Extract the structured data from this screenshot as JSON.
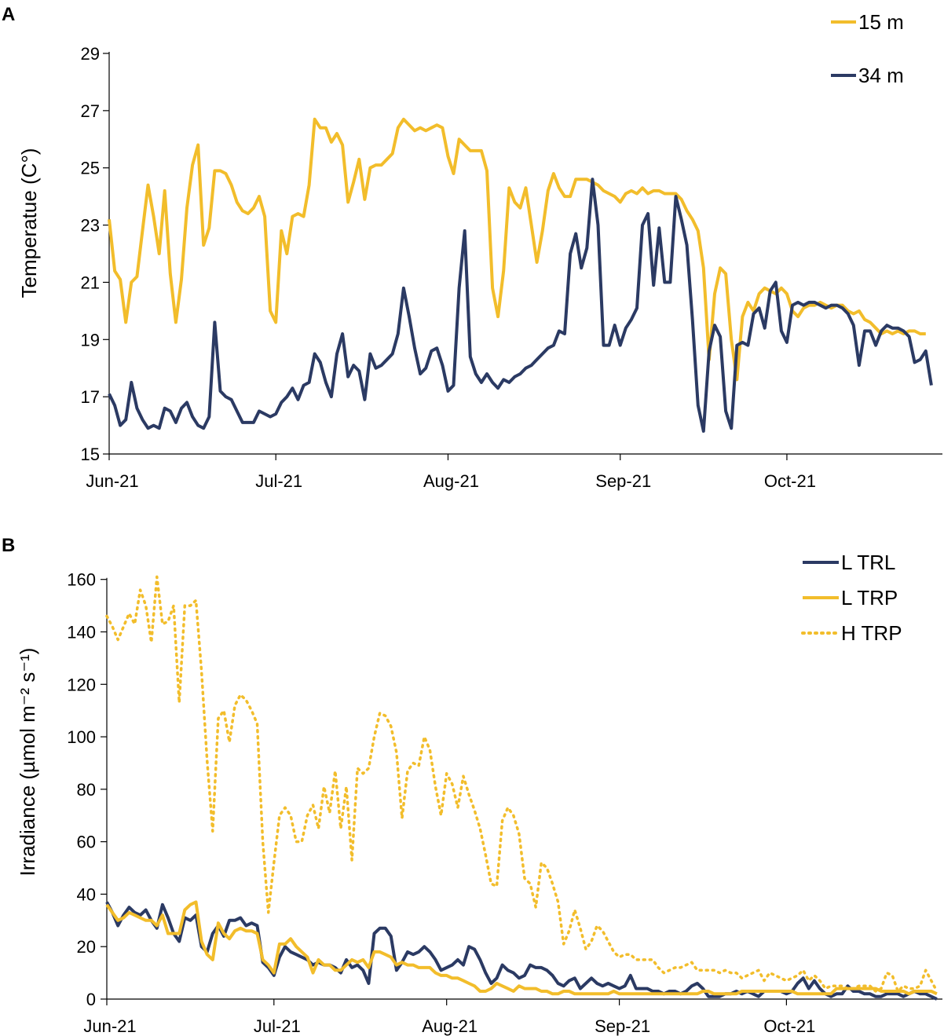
{
  "colors": {
    "yellow": "#F2BD2B",
    "navy": "#2B3A63"
  },
  "chart_data": [
    {
      "type": "line",
      "panel_label": "A",
      "ylabel": "Temperatue (C°)",
      "xlabel": "",
      "ylim": [
        15,
        29
      ],
      "yticks": [
        "15",
        "17",
        "19",
        "21",
        "23",
        "25",
        "27",
        "29"
      ],
      "xlim": [
        0,
        150
      ],
      "xticks": [
        {
          "label": "Jun-21",
          "day": 0
        },
        {
          "label": "Jul-21",
          "day": 30
        },
        {
          "label": "Aug-21",
          "day": 61
        },
        {
          "label": "Sep-21",
          "day": 92
        },
        {
          "label": "Oct-21",
          "day": 122
        }
      ],
      "legend_position": "top-right",
      "series": [
        {
          "name": "15 m",
          "color_key": "yellow",
          "style": "solid",
          "values": [
            23.2,
            21.4,
            21.1,
            19.6,
            21.0,
            21.2,
            22.8,
            24.4,
            23.3,
            22.0,
            24.2,
            21.3,
            19.6,
            21.1,
            23.6,
            25.1,
            25.8,
            22.3,
            22.9,
            24.9,
            24.9,
            24.8,
            24.4,
            23.8,
            23.5,
            23.4,
            23.6,
            24.0,
            23.3,
            20.0,
            19.6,
            22.8,
            22.0,
            23.3,
            23.4,
            23.3,
            24.4,
            26.7,
            26.4,
            26.4,
            25.9,
            26.2,
            25.8,
            23.8,
            24.5,
            25.3,
            23.9,
            25.0,
            25.1,
            25.1,
            25.3,
            25.5,
            26.4,
            26.7,
            26.5,
            26.3,
            26.4,
            26.3,
            26.4,
            26.5,
            26.4,
            25.4,
            24.8,
            26.0,
            25.8,
            25.6,
            25.6,
            25.6,
            24.9,
            20.8,
            19.8,
            21.4,
            24.3,
            23.8,
            23.6,
            24.3,
            23.0,
            21.7,
            22.8,
            24.2,
            24.8,
            24.3,
            24.0,
            24.0,
            24.6,
            24.6,
            24.6,
            24.5,
            24.4,
            24.2,
            24.1,
            24.0,
            23.8,
            24.1,
            24.2,
            24.1,
            24.3,
            24.1,
            24.2,
            24.2,
            24.1,
            24.1,
            24.1,
            23.9,
            23.5,
            23.2,
            22.8,
            21.5,
            18.3,
            20.6,
            21.5,
            21.3,
            19.0,
            17.6,
            19.8,
            20.3,
            20.0,
            20.6,
            20.8,
            20.7,
            20.6,
            20.8,
            20.6,
            20.0,
            19.8,
            20.1,
            20.2,
            20.2,
            20.3,
            20.2,
            20.1,
            20.2,
            20.2,
            20.0,
            19.9,
            20.0,
            19.7,
            19.6,
            19.4,
            19.2,
            19.3,
            19.2,
            19.3,
            19.2,
            19.3,
            19.3,
            19.2,
            19.2
          ]
        },
        {
          "name": "34 m",
          "color_key": "navy",
          "style": "solid",
          "values": [
            17.1,
            16.7,
            16.0,
            16.2,
            17.5,
            16.6,
            16.2,
            15.9,
            16.0,
            15.9,
            16.6,
            16.5,
            16.1,
            16.6,
            16.8,
            16.3,
            16.0,
            15.9,
            16.3,
            19.6,
            17.2,
            17.0,
            16.9,
            16.5,
            16.1,
            16.1,
            16.1,
            16.5,
            16.4,
            16.3,
            16.4,
            16.8,
            17.0,
            17.3,
            16.9,
            17.4,
            17.5,
            18.5,
            18.2,
            17.5,
            17.0,
            18.5,
            19.2,
            17.7,
            18.1,
            17.9,
            16.9,
            18.5,
            18.0,
            18.1,
            18.3,
            18.5,
            19.2,
            20.8,
            19.8,
            18.7,
            17.8,
            18.0,
            18.6,
            18.7,
            18.1,
            17.2,
            17.4,
            20.8,
            22.8,
            18.4,
            17.8,
            17.5,
            17.8,
            17.5,
            17.3,
            17.6,
            17.5,
            17.7,
            17.8,
            18.0,
            18.1,
            18.3,
            18.5,
            18.7,
            18.8,
            19.3,
            19.2,
            22.0,
            22.7,
            21.5,
            22.2,
            24.6,
            23.0,
            18.8,
            18.8,
            19.5,
            18.8,
            19.4,
            19.7,
            20.1,
            23.0,
            23.4,
            20.9,
            22.9,
            21.0,
            21.0,
            24.0,
            23.2,
            22.3,
            19.7,
            16.7,
            15.8,
            18.6,
            19.5,
            19.1,
            16.5,
            15.9,
            18.8,
            18.9,
            18.8,
            19.9,
            20.1,
            19.4,
            20.7,
            21.0,
            19.3,
            18.9,
            20.2,
            20.3,
            20.2,
            20.3,
            20.3,
            20.2,
            20.1,
            20.2,
            20.2,
            20.1,
            19.9,
            19.5,
            18.1,
            19.3,
            19.3,
            18.8,
            19.3,
            19.5,
            19.4,
            19.4,
            19.3,
            19.1,
            18.2,
            18.3,
            18.6,
            17.4
          ]
        }
      ]
    },
    {
      "type": "line",
      "panel_label": "B",
      "ylabel": "Irradiance (µmol m⁻² s⁻¹)",
      "xlabel": "",
      "ylim": [
        0,
        165
      ],
      "yticks": [
        "0",
        "20",
        "40",
        "60",
        "80",
        "100",
        "120",
        "140",
        "160"
      ],
      "xlim": [
        0,
        150
      ],
      "xticks": [
        {
          "label": "Jun-21",
          "day": 0
        },
        {
          "label": "Jul-21",
          "day": 30
        },
        {
          "label": "Aug-21",
          "day": 61
        },
        {
          "label": "Sep-21",
          "day": 92
        },
        {
          "label": "Oct-21",
          "day": 122
        }
      ],
      "legend_position": "top-right",
      "series": [
        {
          "name": "L TRL",
          "color_key": "navy",
          "style": "solid",
          "values": [
            37,
            33,
            28,
            32,
            35,
            33,
            32,
            34,
            30,
            27,
            36,
            31,
            25,
            22,
            31,
            30,
            32,
            20,
            18,
            25,
            28,
            24,
            30,
            30,
            31,
            28,
            29,
            28,
            14,
            12,
            9,
            16,
            20,
            18,
            17,
            16,
            15,
            13,
            14,
            13,
            13,
            12,
            10,
            15,
            12,
            13,
            11,
            6,
            25,
            27,
            27,
            24,
            11,
            14,
            18,
            17,
            18,
            20,
            18,
            15,
            11,
            12,
            13,
            15,
            13,
            20,
            19,
            15,
            10,
            6,
            8,
            13,
            11,
            10,
            8,
            9,
            13,
            12,
            12,
            11,
            9,
            6,
            5,
            7,
            8,
            4,
            6,
            8,
            6,
            5,
            6,
            5,
            4,
            5,
            9,
            4,
            4,
            4,
            3,
            3,
            2,
            3,
            3,
            2,
            3,
            5,
            6,
            4,
            1,
            1,
            1,
            2,
            2,
            3,
            2,
            3,
            2,
            1,
            3,
            3,
            3,
            3,
            2,
            3,
            6,
            8,
            4,
            7,
            4,
            2,
            1,
            2,
            2,
            5,
            3,
            3,
            2,
            2,
            1,
            1,
            2,
            2,
            2,
            1,
            2,
            3,
            2,
            2,
            1,
            0
          ]
        },
        {
          "name": "L TRP",
          "color_key": "yellow",
          "style": "solid",
          "values": [
            36,
            33,
            30,
            31,
            33,
            32,
            31,
            30,
            30,
            28,
            32,
            25,
            25,
            25,
            34,
            36,
            37,
            22,
            17,
            15,
            29,
            25,
            23,
            26,
            27,
            26,
            26,
            25,
            15,
            13,
            10,
            21,
            21,
            23,
            20,
            18,
            16,
            10,
            15,
            13,
            13,
            11,
            11,
            13,
            15,
            14,
            15,
            12,
            18,
            18,
            17,
            16,
            13,
            14,
            13,
            13,
            12,
            12,
            12,
            10,
            9,
            9,
            8,
            8,
            7,
            6,
            5,
            3,
            3,
            4,
            6,
            5,
            4,
            3,
            5,
            4,
            4,
            4,
            3,
            3,
            2,
            2,
            3,
            3,
            2,
            2,
            2,
            2,
            2,
            2,
            2,
            3,
            2,
            2,
            2,
            2,
            2,
            2,
            2,
            2,
            2,
            2,
            2,
            2,
            2,
            2,
            2,
            3,
            3,
            2,
            2,
            2,
            2,
            2,
            3,
            3,
            3,
            3,
            3,
            3,
            3,
            3,
            3,
            3,
            2,
            2,
            2,
            2,
            2,
            2,
            2,
            4,
            4,
            4,
            4,
            4,
            4,
            4,
            4,
            3,
            3,
            3,
            3,
            3,
            2,
            3,
            3,
            3,
            3,
            2
          ]
        },
        {
          "name": "H TRP",
          "color_key": "yellow",
          "style": "dotted",
          "values": [
            146,
            142,
            137,
            142,
            147,
            143,
            156,
            150,
            136,
            161,
            143,
            144,
            150,
            113,
            150,
            150,
            152,
            125,
            91,
            64,
            107,
            110,
            98,
            112,
            116,
            114,
            110,
            105,
            60,
            33,
            52,
            70,
            73,
            70,
            60,
            60,
            70,
            74,
            65,
            81,
            71,
            87,
            65,
            81,
            53,
            88,
            86,
            88,
            100,
            109,
            108,
            104,
            94,
            69,
            87,
            90,
            89,
            100,
            95,
            81,
            70,
            86,
            82,
            73,
            85,
            78,
            72,
            65,
            55,
            44,
            43,
            68,
            73,
            70,
            63,
            46,
            44,
            35,
            52,
            50,
            44,
            37,
            21,
            26,
            34,
            27,
            19,
            22,
            28,
            26,
            22,
            18,
            16,
            17,
            17,
            15,
            15,
            15,
            15,
            12,
            10,
            11,
            12,
            12,
            13,
            14,
            11,
            11,
            11,
            11,
            10,
            11,
            10,
            10,
            8,
            9,
            10,
            11,
            7,
            10,
            9,
            8,
            7,
            8,
            9,
            11,
            7,
            9,
            7,
            4,
            5,
            5,
            5,
            4,
            4,
            5,
            5,
            5,
            3,
            4,
            10,
            9,
            3,
            5,
            4,
            4,
            5,
            11,
            7,
            3
          ]
        }
      ]
    }
  ]
}
